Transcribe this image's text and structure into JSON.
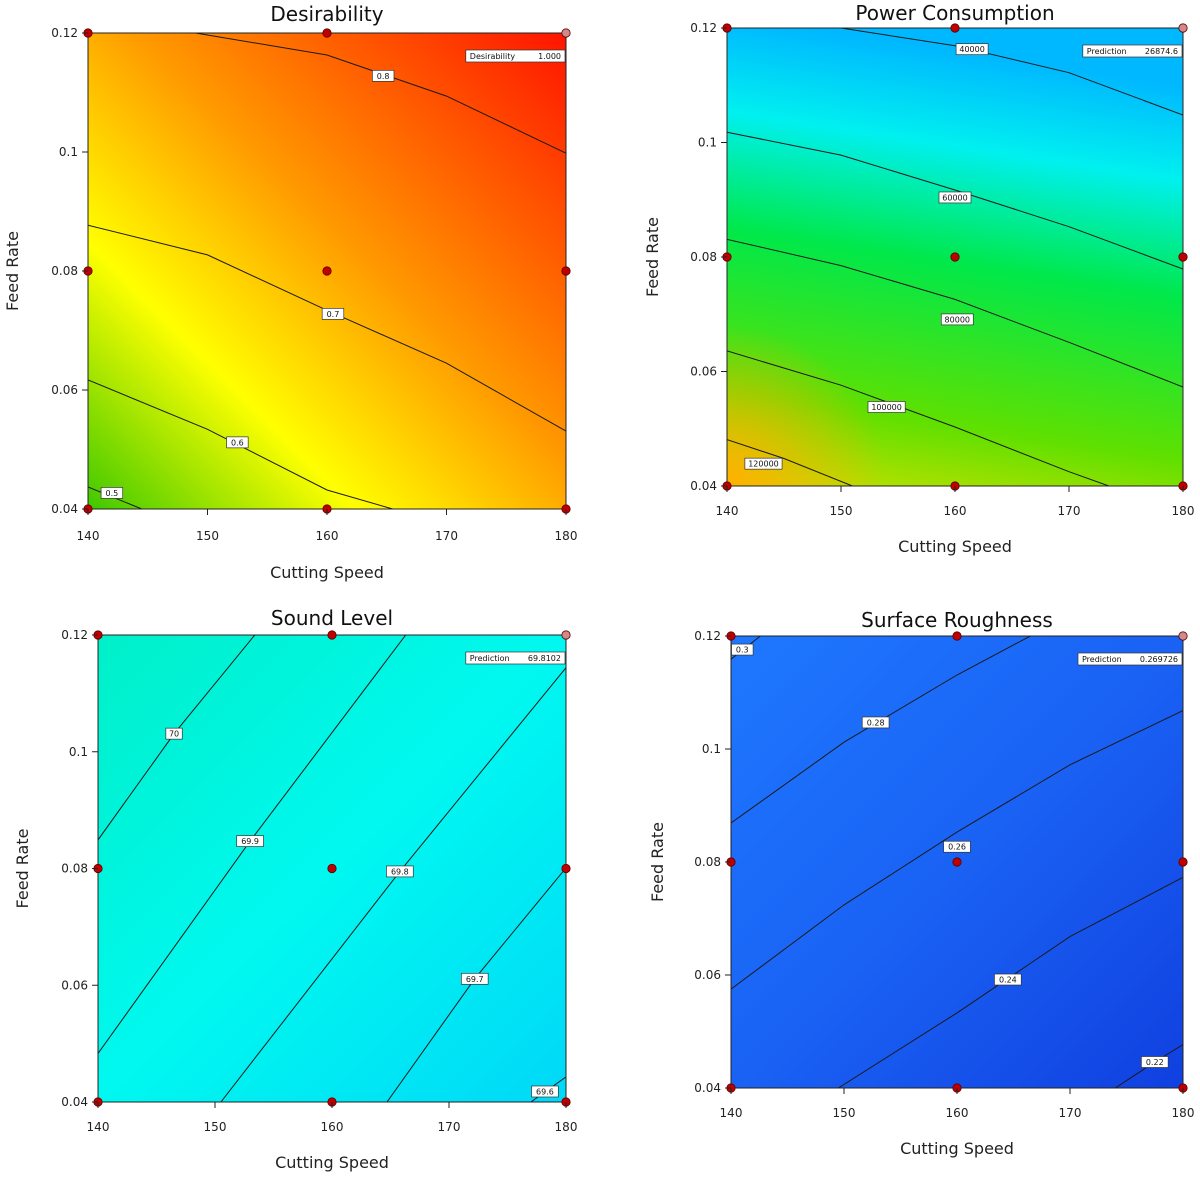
{
  "chart_data": [
    {
      "id": "desirability",
      "type": "contour",
      "title": "Desirability",
      "xlabel": "Cutting Speed",
      "ylabel": "Feed Rate",
      "xlim": [
        140,
        180
      ],
      "ylim": [
        0.04,
        0.12
      ],
      "x_ticks": [
        "140",
        "150",
        "160",
        "170",
        "180"
      ],
      "y_ticks": [
        "0.04",
        "0.06",
        "0.08",
        "0.1",
        "0.12"
      ],
      "grid": false,
      "colors": {
        "low_left": "#3fc800",
        "mid": "#ffff00",
        "top_right": "#ff1400"
      },
      "contours": [
        {
          "label": "0.5",
          "points": [
            [
              140,
              0.0437
            ],
            [
              144.5,
              0.04
            ]
          ],
          "label_at": [
            142,
            0.0427
          ]
        },
        {
          "label": "0.6",
          "points": [
            [
              140,
              0.0617
            ],
            [
              150,
              0.0534
            ],
            [
              160,
              0.0432
            ],
            [
              165.5,
              0.04
            ]
          ],
          "label_at": [
            152.5,
            0.0512
          ]
        },
        {
          "label": "0.7",
          "points": [
            [
              140,
              0.0877
            ],
            [
              150,
              0.0827
            ],
            [
              160,
              0.0734
            ],
            [
              170,
              0.0645
            ],
            [
              180,
              0.0531
            ]
          ],
          "label_at": [
            160.5,
            0.0728
          ]
        },
        {
          "label": "0.8",
          "points": [
            [
              149,
              0.12
            ],
            [
              160,
              0.1163
            ],
            [
              170,
              0.1094
            ],
            [
              180,
              0.0998
            ]
          ],
          "label_at": [
            164.7,
            0.1128
          ]
        }
      ],
      "design_points": [
        [
          140,
          0.12
        ],
        [
          160,
          0.12
        ],
        [
          180,
          0.12
        ],
        [
          140,
          0.08
        ],
        [
          160,
          0.08
        ],
        [
          180,
          0.08
        ],
        [
          140,
          0.04
        ],
        [
          160,
          0.04
        ],
        [
          180,
          0.04
        ]
      ],
      "prediction": {
        "label": "Desirability",
        "value": "1.000"
      }
    },
    {
      "id": "power",
      "type": "contour",
      "title": "Power Consumption",
      "xlabel": "Cutting Speed",
      "ylabel": "Feed Rate",
      "xlim": [
        140,
        180
      ],
      "ylim": [
        0.04,
        0.12
      ],
      "x_ticks": [
        "140",
        "150",
        "160",
        "170",
        "180"
      ],
      "y_ticks": [
        "0.04",
        "0.06",
        "0.08",
        "0.1",
        "0.12"
      ],
      "grid": false,
      "colors": {
        "top": "#00b8ff",
        "upper": "#00f0f0",
        "mid": "#00e84a",
        "lower": "#60e000",
        "bottom_left": "#ffb000"
      },
      "contours": [
        {
          "label": "40000",
          "points": [
            [
              150,
              0.12
            ],
            [
              160,
              0.1169
            ],
            [
              170,
              0.1122
            ],
            [
              180,
              0.1048
            ]
          ],
          "label_at": [
            161.5,
            0.1163
          ]
        },
        {
          "label": "60000",
          "points": [
            [
              140,
              0.1018
            ],
            [
              150,
              0.0978
            ],
            [
              160,
              0.0917
            ],
            [
              170,
              0.0853
            ],
            [
              180,
              0.0779
            ]
          ],
          "label_at": [
            160,
            0.0904
          ]
        },
        {
          "label": "80000",
          "points": [
            [
              140,
              0.0831
            ],
            [
              150,
              0.0785
            ],
            [
              160,
              0.0726
            ],
            [
              170,
              0.0651
            ],
            [
              180,
              0.0573
            ]
          ],
          "label_at": [
            160.2,
            0.0691
          ]
        },
        {
          "label": "100000",
          "points": [
            [
              140,
              0.0636
            ],
            [
              150,
              0.0576
            ],
            [
              160,
              0.0503
            ],
            [
              170,
              0.0425
            ],
            [
              173.5,
              0.04
            ]
          ],
          "label_at": [
            154,
            0.0538
          ]
        },
        {
          "label": "120000",
          "points": [
            [
              140,
              0.0481
            ],
            [
              145,
              0.0448
            ],
            [
              151,
              0.04
            ]
          ],
          "label_at": [
            143.2,
            0.0439
          ]
        }
      ],
      "design_points": [
        [
          140,
          0.12
        ],
        [
          160,
          0.12
        ],
        [
          180,
          0.12
        ],
        [
          140,
          0.08
        ],
        [
          160,
          0.08
        ],
        [
          180,
          0.08
        ],
        [
          140,
          0.04
        ],
        [
          160,
          0.04
        ],
        [
          180,
          0.04
        ]
      ],
      "prediction": {
        "label": "Prediction",
        "value": "26874.6"
      }
    },
    {
      "id": "sound",
      "type": "contour",
      "title": "Sound Level",
      "xlabel": "Cutting Speed",
      "ylabel": "Feed Rate",
      "xlim": [
        140,
        180
      ],
      "ylim": [
        0.04,
        0.12
      ],
      "x_ticks": [
        "140",
        "150",
        "160",
        "170",
        "180"
      ],
      "y_ticks": [
        "0.04",
        "0.06",
        "0.08",
        "0.1",
        "0.12"
      ],
      "grid": false,
      "colors": {
        "top_left": "#00f0c8",
        "mid": "#00f8f0",
        "bottom_right": "#00d8f8"
      },
      "contours": [
        {
          "label": "70",
          "points": [
            [
              140,
              0.0849
            ],
            [
              146.5,
              0.1031
            ],
            [
              153.4,
              0.12
            ]
          ],
          "label_at": [
            146.5,
            0.1031
          ]
        },
        {
          "label": "69.9",
          "points": [
            [
              140,
              0.0483
            ],
            [
              153,
              0.0847
            ],
            [
              166.3,
              0.12
            ]
          ],
          "label_at": [
            153,
            0.0847
          ]
        },
        {
          "label": "69.8",
          "points": [
            [
              150.5,
              0.04
            ],
            [
              165.8,
              0.0795
            ],
            [
              180,
              0.1144
            ]
          ],
          "label_at": [
            165.8,
            0.0795
          ]
        },
        {
          "label": "69.7",
          "points": [
            [
              164.7,
              0.04
            ],
            [
              172.2,
              0.0611
            ],
            [
              180,
              0.0801
            ]
          ],
          "label_at": [
            172.2,
            0.0611
          ]
        },
        {
          "label": "69.6",
          "points": [
            [
              177,
              0.04
            ],
            [
              180,
              0.0443
            ]
          ],
          "label_at": [
            178.2,
            0.0418
          ]
        }
      ],
      "design_points": [
        [
          140,
          0.12
        ],
        [
          160,
          0.12
        ],
        [
          180,
          0.12
        ],
        [
          140,
          0.08
        ],
        [
          160,
          0.08
        ],
        [
          180,
          0.08
        ],
        [
          140,
          0.04
        ],
        [
          160,
          0.04
        ],
        [
          180,
          0.04
        ]
      ],
      "prediction": {
        "label": "Prediction",
        "value": "69.8102"
      }
    },
    {
      "id": "roughness",
      "type": "contour",
      "title": "Surface Roughness",
      "xlabel": "Cutting Speed",
      "ylabel": "Feed Rate",
      "xlim": [
        140,
        180
      ],
      "ylim": [
        0.04,
        0.12
      ],
      "x_ticks": [
        "140",
        "150",
        "160",
        "170",
        "180"
      ],
      "y_ticks": [
        "0.04",
        "0.06",
        "0.08",
        "0.1",
        "0.12"
      ],
      "grid": false,
      "colors": {
        "top_left": "#1e78ff",
        "mid": "#1a62f4",
        "bottom_right": "#1040e0"
      },
      "contours": [
        {
          "label": "0.3",
          "points": [
            [
              140,
              0.1159
            ],
            [
              142.6,
              0.12
            ]
          ],
          "label_at": [
            141,
            0.1176
          ]
        },
        {
          "label": "0.28",
          "points": [
            [
              140,
              0.0869
            ],
            [
              150,
              0.1012
            ],
            [
              160,
              0.1131
            ],
            [
              166.5,
              0.12
            ]
          ],
          "label_at": [
            152.8,
            0.1047
          ]
        },
        {
          "label": "0.26",
          "points": [
            [
              140,
              0.0575
            ],
            [
              150,
              0.0724
            ],
            [
              160,
              0.0853
            ],
            [
              170,
              0.0972
            ],
            [
              180,
              0.1068
            ]
          ],
          "label_at": [
            160,
            0.0827
          ]
        },
        {
          "label": "0.24",
          "points": [
            [
              149.5,
              0.04
            ],
            [
              160,
              0.0533
            ],
            [
              170,
              0.0668
            ],
            [
              180,
              0.0773
            ]
          ],
          "label_at": [
            164.5,
            0.0592
          ]
        },
        {
          "label": "0.22",
          "points": [
            [
              174,
              0.04
            ],
            [
              177.5,
              0.0446
            ],
            [
              180,
              0.0477
            ]
          ],
          "label_at": [
            177.5,
            0.0446
          ]
        }
      ],
      "design_points": [
        [
          140,
          0.12
        ],
        [
          160,
          0.12
        ],
        [
          180,
          0.12
        ],
        [
          140,
          0.08
        ],
        [
          160,
          0.08
        ],
        [
          180,
          0.08
        ],
        [
          140,
          0.04
        ],
        [
          160,
          0.04
        ],
        [
          180,
          0.04
        ]
      ],
      "prediction": {
        "label": "Prediction",
        "value": "0.269726"
      }
    }
  ]
}
